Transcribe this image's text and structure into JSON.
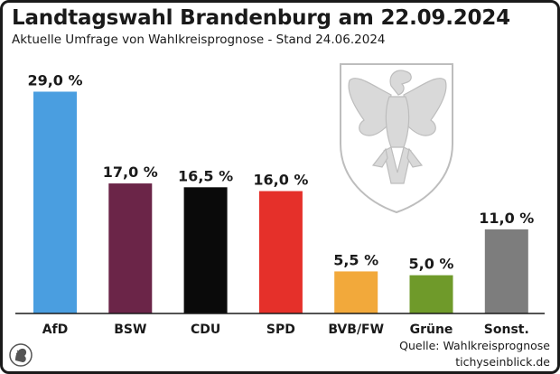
{
  "header": {
    "title": "Landtagswahl Brandenburg am 22.09.2024",
    "subtitle": "Aktuelle Umfrage von Wahlkreisprognose - Stand 24.06.2024"
  },
  "footer": {
    "source_line1": "Quelle: Wahlkreisprognose",
    "source_line2": "tichyseinblick.de"
  },
  "chart_data": {
    "type": "bar",
    "title": "Landtagswahl Brandenburg am 22.09.2024",
    "subtitle": "Aktuelle Umfrage von Wahlkreisprognose - Stand 24.06.2024",
    "categories": [
      "AfD",
      "BSW",
      "CDU",
      "SPD",
      "BVB/FW",
      "Grüne",
      "Sonst."
    ],
    "values": [
      29.0,
      17.0,
      16.5,
      16.0,
      5.5,
      5.0,
      11.0
    ],
    "value_labels": [
      "29,0 %",
      "17,0 %",
      "16,5 %",
      "16,0 %",
      "5,5 %",
      "5,0 %",
      "11,0 %"
    ],
    "colors": [
      "#4a9ee0",
      "#6b2548",
      "#0a0a0a",
      "#e5302a",
      "#f2a93b",
      "#6f9a2a",
      "#7d7d7d"
    ],
    "ylim": [
      0,
      30
    ],
    "xlabel": "",
    "ylabel": "",
    "grid": false,
    "legend": "none"
  }
}
